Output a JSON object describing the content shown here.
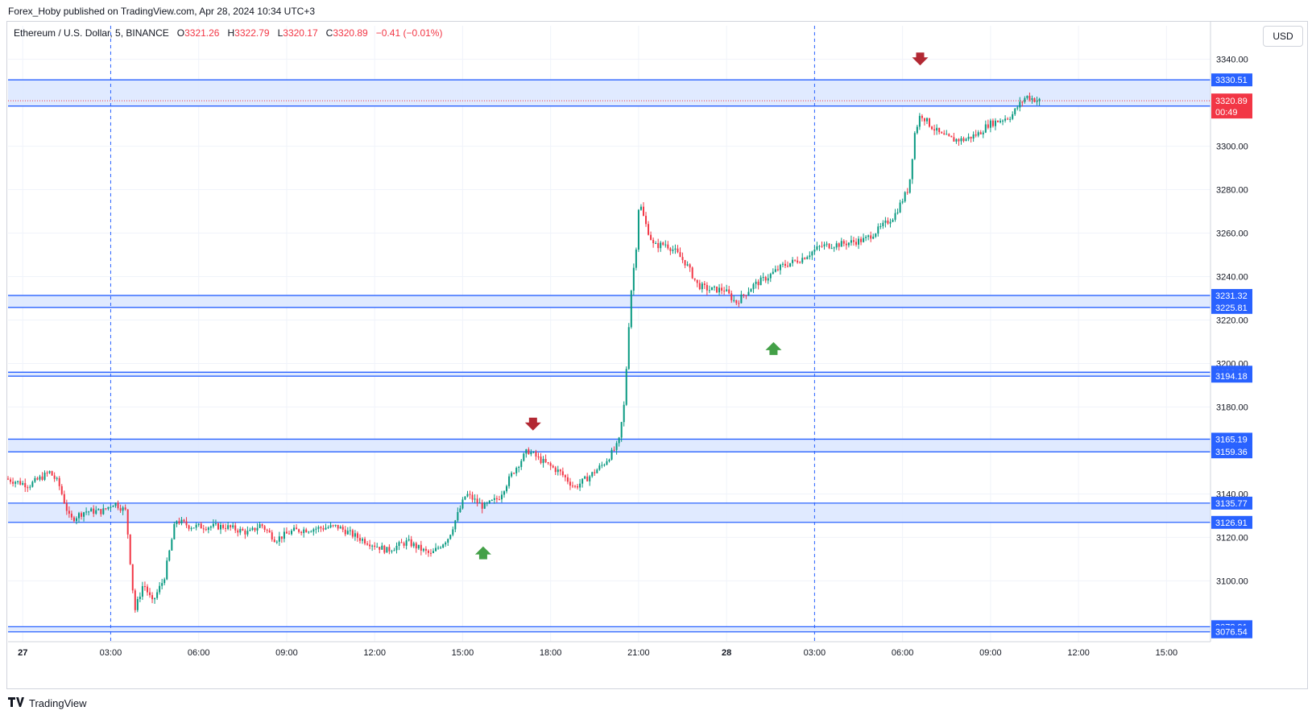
{
  "header": {
    "publisher": "Forex_Hoby published on TradingView.com, Apr 28, 2024 10:34 UTC+3"
  },
  "legend": {
    "symbol": "Ethereum / U.S. Dollar, 5, BINANCE",
    "open_label": "O",
    "open": "3321.26",
    "high_label": "H",
    "high": "3322.79",
    "low_label": "L",
    "low": "3320.17",
    "close_label": "C",
    "close": "3320.89",
    "change": "−0.41 (−0.01%)"
  },
  "currency_button": "USD",
  "footer": {
    "brand": "TradingView"
  },
  "colors": {
    "up": "#089981",
    "down": "#f23645",
    "zone_fill": "#dbe6ff",
    "zone_line": "#2962ff",
    "arrow_down": "#b22833",
    "arrow_up": "#43a047"
  },
  "chart_data": {
    "type": "candlestick",
    "title": "Ethereum / U.S. Dollar, 5, BINANCE",
    "x_axis": {
      "ticks": [
        "27",
        "03:00",
        "06:00",
        "09:00",
        "12:00",
        "15:00",
        "18:00",
        "21:00",
        "28",
        "03:00",
        "06:00",
        "09:00",
        "12:00",
        "15:00"
      ],
      "tick_hours": [
        0,
        3,
        6,
        9,
        12,
        15,
        18,
        21,
        24,
        27,
        30,
        33,
        36,
        39
      ],
      "range_hours": [
        -0.5,
        40.5
      ]
    },
    "y_axis": {
      "ticks": [
        "3340.00",
        "3300.00",
        "3280.00",
        "3260.00",
        "3240.00",
        "3220.00",
        "3200.00",
        "3180.00",
        "3140.00",
        "3120.00",
        "3100.00"
      ],
      "range": [
        3072,
        3348
      ],
      "grid": true
    },
    "last_price": {
      "value": 3320.89,
      "label": "3320.89",
      "countdown": "00:49"
    },
    "zones": [
      {
        "top": 3330.51,
        "bottom": 3318.48,
        "top_label": "3330.51",
        "bottom_label": "3318.48"
      },
      {
        "top": 3231.32,
        "bottom": 3225.81,
        "top_label": "3231.32",
        "bottom_label": "3225.81"
      },
      {
        "top": 3196.0,
        "bottom": 3194.18,
        "top_label": "3196.00",
        "bottom_label": "3194.18"
      },
      {
        "top": 3165.19,
        "bottom": 3159.36,
        "top_label": "3165.19",
        "bottom_label": "3159.36"
      },
      {
        "top": 3135.77,
        "bottom": 3126.91,
        "top_label": "3135.77",
        "bottom_label": "3126.91"
      },
      {
        "top": 3078.91,
        "bottom": 3076.54,
        "top_label": "3078.91",
        "bottom_label": "3076.54"
      }
    ],
    "vertical_markers_hours": [
      3,
      27
    ],
    "signals": [
      {
        "direction": "down",
        "hour": 17.4,
        "price": 3171
      },
      {
        "direction": "up",
        "hour": 15.7,
        "price": 3114
      },
      {
        "direction": "up",
        "hour": 25.6,
        "price": 3208
      },
      {
        "direction": "down",
        "hour": 30.6,
        "price": 3339
      }
    ],
    "price_path": [
      [
        -0.5,
        3147
      ],
      [
        0.3,
        3144
      ],
      [
        1.0,
        3150
      ],
      [
        1.3,
        3145
      ],
      [
        1.7,
        3128
      ],
      [
        2.2,
        3132
      ],
      [
        2.8,
        3132
      ],
      [
        3.2,
        3136
      ],
      [
        3.6,
        3132
      ],
      [
        3.9,
        3086
      ],
      [
        4.2,
        3099
      ],
      [
        4.5,
        3090
      ],
      [
        4.9,
        3101
      ],
      [
        5.3,
        3128
      ],
      [
        5.8,
        3125
      ],
      [
        6.3,
        3125
      ],
      [
        7.0,
        3125
      ],
      [
        7.8,
        3122
      ],
      [
        8.2,
        3126
      ],
      [
        8.7,
        3119
      ],
      [
        9.3,
        3123
      ],
      [
        10.0,
        3124
      ],
      [
        10.8,
        3125
      ],
      [
        11.5,
        3120
      ],
      [
        12.5,
        3114
      ],
      [
        13.2,
        3118
      ],
      [
        14.0,
        3112
      ],
      [
        14.6,
        3120
      ],
      [
        15.2,
        3140
      ],
      [
        15.8,
        3134
      ],
      [
        16.3,
        3138
      ],
      [
        16.8,
        3150
      ],
      [
        17.3,
        3160
      ],
      [
        17.8,
        3155
      ],
      [
        18.4,
        3150
      ],
      [
        18.9,
        3143
      ],
      [
        19.4,
        3148
      ],
      [
        19.9,
        3154
      ],
      [
        20.4,
        3163
      ],
      [
        20.6,
        3182
      ],
      [
        20.8,
        3230
      ],
      [
        21.0,
        3254
      ],
      [
        21.1,
        3275
      ],
      [
        21.3,
        3265
      ],
      [
        21.6,
        3254
      ],
      [
        22.0,
        3255
      ],
      [
        22.3,
        3252
      ],
      [
        22.7,
        3246
      ],
      [
        23.1,
        3236
      ],
      [
        23.5,
        3234
      ],
      [
        24.0,
        3234
      ],
      [
        24.4,
        3228
      ],
      [
        25.0,
        3236
      ],
      [
        25.5,
        3240
      ],
      [
        26.0,
        3245
      ],
      [
        26.6,
        3248
      ],
      [
        27.3,
        3254
      ],
      [
        28.0,
        3255
      ],
      [
        28.8,
        3257
      ],
      [
        29.3,
        3262
      ],
      [
        29.8,
        3268
      ],
      [
        30.3,
        3281
      ],
      [
        30.5,
        3306
      ],
      [
        30.7,
        3315
      ],
      [
        31.0,
        3310
      ],
      [
        31.4,
        3305
      ],
      [
        31.8,
        3303
      ],
      [
        32.2,
        3303
      ],
      [
        32.7,
        3306
      ],
      [
        33.0,
        3310
      ],
      [
        33.4,
        3312
      ],
      [
        33.8,
        3314
      ],
      [
        34.0,
        3318
      ],
      [
        34.3,
        3323
      ],
      [
        34.5,
        3322
      ],
      [
        34.7,
        3320.89
      ]
    ]
  }
}
